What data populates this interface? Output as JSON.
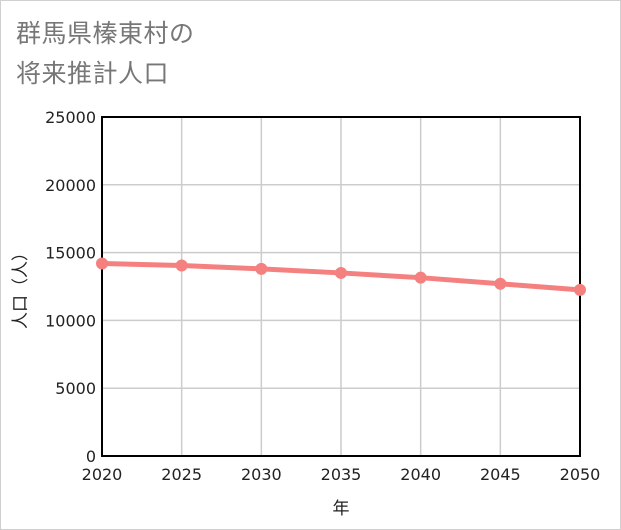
{
  "title": {
    "line1": "群馬県榛東村の",
    "line2": "将来推計人口"
  },
  "colors": {
    "series": "#f58080",
    "grid": "#cccccc",
    "axis": "#000000",
    "title": "#777777"
  },
  "chart_data": {
    "type": "line",
    "title": "群馬県榛東村の将来推計人口",
    "xlabel": "年",
    "ylabel": "人口（人）",
    "x": [
      2020,
      2025,
      2030,
      2035,
      2040,
      2045,
      2050
    ],
    "x_tick_labels": [
      "2020",
      "2025",
      "2030",
      "2035",
      "2040",
      "2045",
      "2050"
    ],
    "y_ticks": [
      0,
      5000,
      10000,
      15000,
      20000,
      25000
    ],
    "y_tick_labels": [
      "0",
      "5000",
      "10000",
      "15000",
      "20000",
      "25000"
    ],
    "ylim": [
      0,
      25000
    ],
    "xlim": [
      2020,
      2050
    ],
    "grid": true,
    "series": [
      {
        "name": "人口",
        "values": [
          14200,
          14050,
          13800,
          13500,
          13150,
          12700,
          12250
        ]
      }
    ]
  }
}
